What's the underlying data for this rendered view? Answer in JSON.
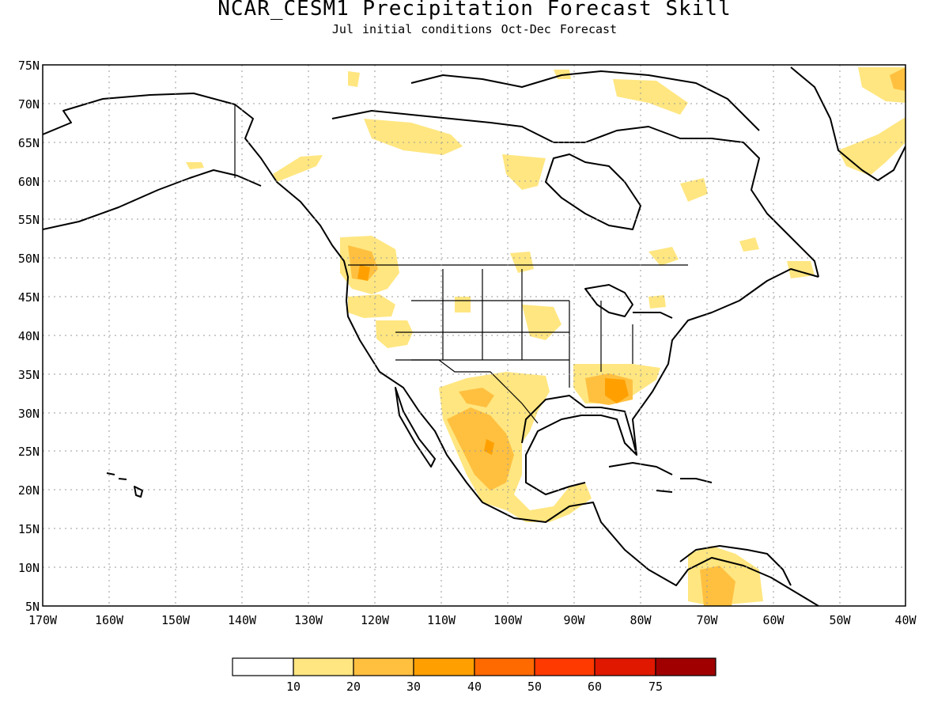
{
  "title": "NCAR_CESM1 Precipitation Forecast Skill",
  "subtitle": "Jul initial conditions  Oct-Dec Forecast",
  "map": {
    "projection": "cylindrical equidistant",
    "lon_range": [
      -170,
      -40
    ],
    "lat_range": [
      5,
      75
    ],
    "lat_ticks": [
      "75N",
      "70N",
      "65N",
      "60N",
      "55N",
      "50N",
      "45N",
      "40N",
      "35N",
      "30N",
      "25N",
      "20N",
      "15N",
      "10N",
      "5N"
    ],
    "lon_ticks": [
      "170W",
      "160W",
      "150W",
      "140W",
      "130W",
      "120W",
      "110W",
      "100W",
      "90W",
      "80W",
      "70W",
      "60W",
      "50W",
      "40W"
    ],
    "gridlines": "dotted",
    "coastline_color": "#000000",
    "land_color": "#ffffff"
  },
  "colorbar": {
    "bins": [
      {
        "color": "#ffffff"
      },
      {
        "color": "#ffe680"
      },
      {
        "color": "#ffc040"
      },
      {
        "color": "#ffa000"
      },
      {
        "color": "#ff6a00"
      },
      {
        "color": "#ff3a00"
      },
      {
        "color": "#e01800"
      },
      {
        "color": "#a00000"
      }
    ],
    "labels": [
      "10",
      "20",
      "30",
      "40",
      "50",
      "60",
      "75"
    ]
  }
}
